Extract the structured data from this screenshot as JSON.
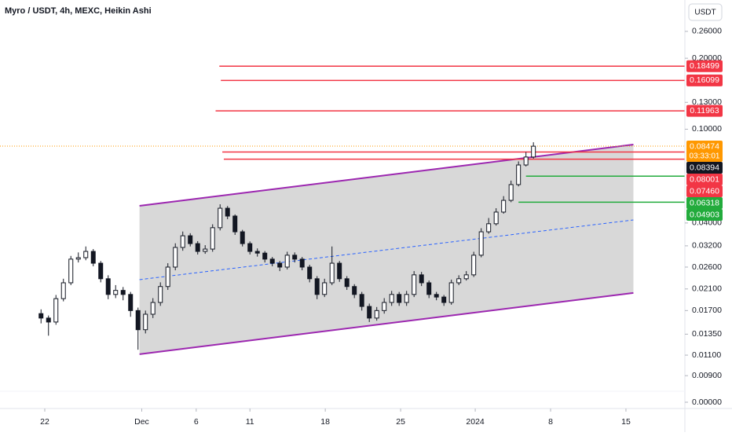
{
  "chart_data": {
    "type": "candlestick",
    "title": "Myro / USDT, 4h, MEXC, Heikin Ashi",
    "currency_button": "USDT",
    "log_scale": true,
    "xlim": [
      -5.5,
      86.3
    ],
    "ylim": [
      0.00653,
      0.3533
    ],
    "xticks": [
      {
        "value": 0.5,
        "label": "22"
      },
      {
        "value": 13.5,
        "label": "Dec"
      },
      {
        "value": 20.8,
        "label": "6"
      },
      {
        "value": 28,
        "label": "11"
      },
      {
        "value": 38.1,
        "label": "18"
      },
      {
        "value": 48.2,
        "label": "25"
      },
      {
        "value": 58.2,
        "label": "2024"
      },
      {
        "value": 68.3,
        "label": "8"
      },
      {
        "value": 78.4,
        "label": "15"
      }
    ],
    "yticks": [
      {
        "value": 0.26,
        "label": "0.26000"
      },
      {
        "value": 0.2,
        "label": "0.20000"
      },
      {
        "value": 0.13,
        "label": "0.13000"
      },
      {
        "value": 0.1,
        "label": "0.10000"
      },
      {
        "value": 0.04,
        "label": "0.04000"
      },
      {
        "value": 0.032,
        "label": "0.03200"
      },
      {
        "value": 0.026,
        "label": "0.02600"
      },
      {
        "value": 0.021,
        "label": "0.02100"
      },
      {
        "value": 0.017,
        "label": "0.01700"
      },
      {
        "value": 0.0135,
        "label": "0.01350"
      },
      {
        "value": 0.011,
        "label": "0.01100"
      },
      {
        "value": 0.009,
        "label": "0.00900"
      },
      {
        "value": 0,
        "label": "0.00000"
      }
    ],
    "up_color": "#ffffff",
    "down_color": "#131722",
    "candles": [
      [
        0.0165,
        0.0172,
        0.015,
        0.0158
      ],
      [
        0.0158,
        0.0162,
        0.0133,
        0.0152
      ],
      [
        0.0152,
        0.0198,
        0.0148,
        0.0191
      ],
      [
        0.0191,
        0.0232,
        0.0186,
        0.0223
      ],
      [
        0.0223,
        0.029,
        0.0218,
        0.0281
      ],
      [
        0.0281,
        0.03,
        0.0272,
        0.0285
      ],
      [
        0.0285,
        0.0318,
        0.0278,
        0.0303
      ],
      [
        0.0303,
        0.031,
        0.0262,
        0.027
      ],
      [
        0.027,
        0.0276,
        0.0224,
        0.0232
      ],
      [
        0.0232,
        0.024,
        0.019,
        0.0199
      ],
      [
        0.0199,
        0.0218,
        0.0192,
        0.0207
      ],
      [
        0.0207,
        0.0214,
        0.0188,
        0.0199
      ],
      [
        0.0199,
        0.0204,
        0.016,
        0.017
      ],
      [
        0.017,
        0.0175,
        0.0116,
        0.0141
      ],
      [
        0.0141,
        0.017,
        0.0136,
        0.0164
      ],
      [
        0.0164,
        0.0192,
        0.0158,
        0.0184
      ],
      [
        0.0184,
        0.0224,
        0.0178,
        0.0215
      ],
      [
        0.0215,
        0.027,
        0.0208,
        0.026
      ],
      [
        0.026,
        0.0328,
        0.0252,
        0.0315
      ],
      [
        0.0315,
        0.0368,
        0.0305,
        0.0353
      ],
      [
        0.0353,
        0.0362,
        0.0318,
        0.0327
      ],
      [
        0.0327,
        0.0335,
        0.0294,
        0.0303
      ],
      [
        0.0303,
        0.0322,
        0.0296,
        0.031
      ],
      [
        0.031,
        0.0395,
        0.0302,
        0.0382
      ],
      [
        0.0382,
        0.048,
        0.0372,
        0.0462
      ],
      [
        0.0462,
        0.0472,
        0.0415,
        0.0428
      ],
      [
        0.0428,
        0.0435,
        0.0356,
        0.0367
      ],
      [
        0.0367,
        0.0374,
        0.0318,
        0.0327
      ],
      [
        0.0327,
        0.0334,
        0.0294,
        0.0303
      ],
      [
        0.0303,
        0.0312,
        0.0288,
        0.0298
      ],
      [
        0.0298,
        0.0304,
        0.0272,
        0.0281
      ],
      [
        0.0281,
        0.0287,
        0.0262,
        0.027
      ],
      [
        0.027,
        0.0276,
        0.025,
        0.026
      ],
      [
        0.026,
        0.0302,
        0.0254,
        0.0292
      ],
      [
        0.0292,
        0.03,
        0.0272,
        0.0281
      ],
      [
        0.0281,
        0.0287,
        0.0252,
        0.026
      ],
      [
        0.026,
        0.0266,
        0.0224,
        0.0232
      ],
      [
        0.0232,
        0.0238,
        0.019,
        0.0199
      ],
      [
        0.0199,
        0.0232,
        0.0194,
        0.0223
      ],
      [
        0.0223,
        0.0318,
        0.0218,
        0.027
      ],
      [
        0.027,
        0.0276,
        0.0225,
        0.0232
      ],
      [
        0.0232,
        0.0238,
        0.0208,
        0.0215
      ],
      [
        0.0215,
        0.022,
        0.0192,
        0.0199
      ],
      [
        0.0199,
        0.0204,
        0.017,
        0.0177
      ],
      [
        0.0177,
        0.0182,
        0.0152,
        0.0158
      ],
      [
        0.0158,
        0.0176,
        0.0154,
        0.017
      ],
      [
        0.017,
        0.0192,
        0.0165,
        0.0184
      ],
      [
        0.0184,
        0.0206,
        0.0178,
        0.0199
      ],
      [
        0.0199,
        0.0204,
        0.0178,
        0.0184
      ],
      [
        0.0184,
        0.0206,
        0.0178,
        0.0199
      ],
      [
        0.0199,
        0.025,
        0.0194,
        0.0241
      ],
      [
        0.0241,
        0.0248,
        0.0216,
        0.0223
      ],
      [
        0.0223,
        0.0228,
        0.0192,
        0.0199
      ],
      [
        0.0199,
        0.0204,
        0.0188,
        0.0194
      ],
      [
        0.0194,
        0.0198,
        0.0178,
        0.0184
      ],
      [
        0.0184,
        0.023,
        0.018,
        0.0223
      ],
      [
        0.0223,
        0.024,
        0.0218,
        0.0232
      ],
      [
        0.0232,
        0.025,
        0.0228,
        0.0241
      ],
      [
        0.0241,
        0.0302,
        0.0236,
        0.0292
      ],
      [
        0.0292,
        0.038,
        0.0286,
        0.0367
      ],
      [
        0.0367,
        0.042,
        0.036,
        0.0397
      ],
      [
        0.0397,
        0.0462,
        0.039,
        0.0445
      ],
      [
        0.0445,
        0.052,
        0.0438,
        0.0499
      ],
      [
        0.0499,
        0.0605,
        0.049,
        0.0582
      ],
      [
        0.0582,
        0.073,
        0.0572,
        0.0705
      ],
      [
        0.0705,
        0.08,
        0.0695,
        0.0762
      ],
      [
        0.0762,
        0.088,
        0.075,
        0.0847
      ]
    ],
    "channel": {
      "fill": "#d4d4d4",
      "edge_color": "#9c27b0",
      "mid_color": "#2962ff",
      "upper": [
        [
          13.2,
          0.0473
        ],
        [
          79.4,
          0.0861
        ]
      ],
      "lower": [
        [
          13.2,
          0.0111
        ],
        [
          79.4,
          0.0202
        ]
      ],
      "mid": [
        [
          13.2,
          0.023
        ],
        [
          79.4,
          0.0412
        ]
      ]
    },
    "levels": [
      {
        "price": 0.18499,
        "label": "0.18499",
        "color": "#f23645",
        "from": 23.9
      },
      {
        "price": 0.16099,
        "label": "0.16099",
        "color": "#f23645",
        "from": 24.1
      },
      {
        "price": 0.11963,
        "label": "0.11963",
        "color": "#f23645",
        "from": 23.4
      },
      {
        "price": 0.08001,
        "label": "0.08001",
        "color": "#f23645",
        "from": 24.3
      },
      {
        "price": 0.0746,
        "label": "0.07460",
        "color": "#f23645",
        "from": 24.5
      },
      {
        "price": 0.06318,
        "label": "0.06318",
        "color": "#22ab3c",
        "from": 65
      },
      {
        "price": 0.04903,
        "label": "0.04903",
        "color": "#22ab3c",
        "from": 64
      }
    ],
    "current_price": {
      "price": 0.08474,
      "label": "0.08474",
      "countdown": "03:33:01",
      "color": "#ff9800"
    },
    "close_marker": {
      "price": 0.08394,
      "label": "0.08394",
      "color": "#131722"
    }
  }
}
